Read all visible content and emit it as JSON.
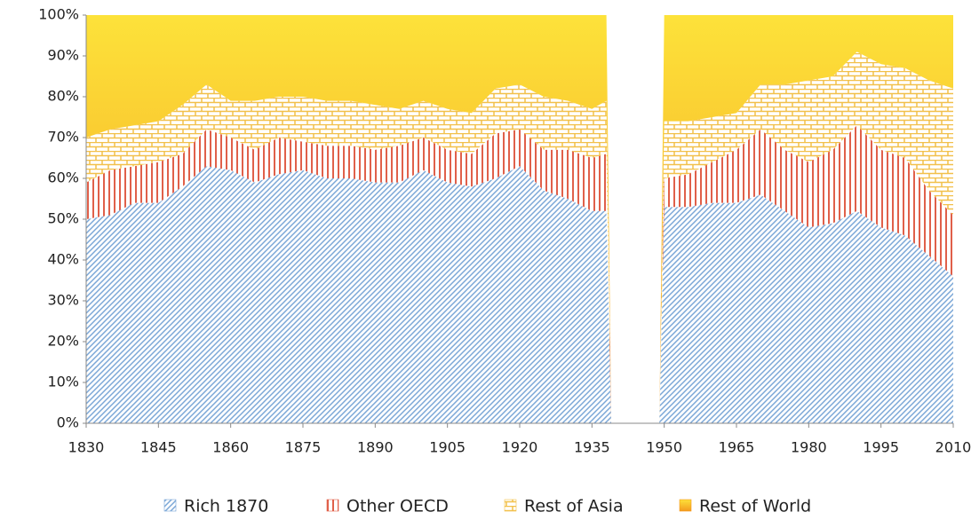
{
  "chart_data": {
    "type": "stacked-area",
    "x": [
      1830,
      1835,
      1840,
      1845,
      1850,
      1855,
      1860,
      1865,
      1870,
      1875,
      1880,
      1885,
      1890,
      1895,
      1900,
      1905,
      1910,
      1915,
      1920,
      1925,
      1930,
      1935,
      1938,
      1939,
      1949,
      1950,
      1955,
      1960,
      1965,
      1970,
      1975,
      1980,
      1985,
      1990,
      1995,
      2000,
      2005,
      2010
    ],
    "series": [
      {
        "name": "Rich 1870",
        "color": "#7ba7d7",
        "values": [
          50,
          51,
          54,
          54,
          58,
          63,
          62,
          59,
          61,
          62,
          60,
          60,
          59,
          59,
          62,
          59,
          58,
          60,
          63,
          57,
          55,
          52,
          52,
          0,
          0,
          53,
          53,
          54,
          54,
          56,
          52,
          48,
          49,
          52,
          48,
          46,
          41,
          36
        ]
      },
      {
        "name": "Other OECD",
        "color": "#e0604a",
        "values": [
          9,
          11,
          9,
          10,
          8,
          9,
          8,
          8,
          9,
          7,
          8,
          8,
          8,
          9,
          8,
          8,
          8,
          11,
          9,
          10,
          12,
          13,
          14,
          0,
          0,
          7,
          8,
          10,
          13,
          16,
          15,
          16,
          18,
          21,
          19,
          19,
          16,
          15
        ]
      },
      {
        "name": "Rest of Asia",
        "color": "#f2c04a",
        "values": [
          11,
          10,
          10,
          10,
          12,
          11,
          9,
          12,
          10,
          11,
          11,
          11,
          11,
          9,
          9,
          10,
          10,
          11,
          11,
          13,
          12,
          12,
          13,
          0,
          0,
          14,
          13,
          11,
          9,
          11,
          16,
          20,
          18,
          18,
          21,
          22,
          27,
          31
        ]
      },
      {
        "name": "Rest of World",
        "color": "#f39a1e",
        "values": [
          30,
          28,
          27,
          26,
          22,
          17,
          21,
          21,
          20,
          20,
          21,
          21,
          22,
          23,
          21,
          23,
          24,
          18,
          17,
          20,
          21,
          23,
          21,
          0,
          0,
          26,
          26,
          25,
          24,
          17,
          17,
          16,
          15,
          9,
          12,
          13,
          16,
          18
        ]
      }
    ],
    "xlim": [
      1830,
      2010
    ],
    "xticks": [
      1830,
      1845,
      1860,
      1875,
      1890,
      1905,
      1920,
      1935,
      1950,
      1965,
      1980,
      1995,
      2010
    ],
    "ylim": [
      0,
      100
    ],
    "yticks": [
      {
        "value": 0,
        "label": "0%"
      },
      {
        "value": 10,
        "label": "10%"
      },
      {
        "value": 20,
        "label": "20%"
      },
      {
        "value": 30,
        "label": "30%"
      },
      {
        "value": 40,
        "label": "40%"
      },
      {
        "value": 50,
        "label": "50%"
      },
      {
        "value": 60,
        "label": "60%"
      },
      {
        "value": 70,
        "label": "70%"
      },
      {
        "value": 80,
        "label": "80%"
      },
      {
        "value": 90,
        "label": "90%"
      },
      {
        "value": 100,
        "label": "100%"
      }
    ]
  }
}
